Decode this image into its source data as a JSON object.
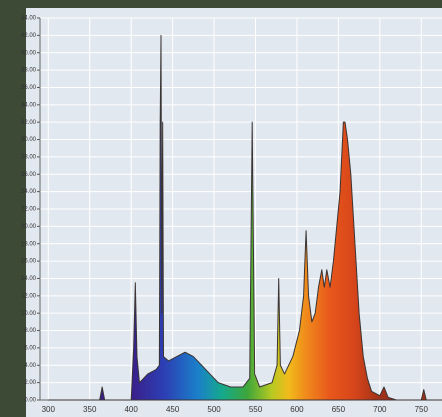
{
  "chart_data": {
    "type": "area",
    "x": [
      300,
      362,
      365,
      368,
      400,
      403,
      405,
      407,
      410,
      420,
      430,
      434,
      435,
      436,
      437,
      438,
      439,
      445,
      455,
      465,
      475,
      485,
      495,
      505,
      520,
      535,
      543,
      546,
      549,
      555,
      570,
      576,
      578,
      580,
      585,
      595,
      603,
      608,
      611,
      614,
      618,
      622,
      626,
      630,
      633,
      636,
      640,
      644,
      648,
      652,
      656,
      658,
      661,
      665,
      670,
      675,
      680,
      685,
      690,
      700,
      705,
      710,
      720,
      750,
      753,
      756,
      775
    ],
    "values": [
      0,
      0,
      1.5,
      0,
      0,
      6,
      13.5,
      5,
      2,
      3,
      3.5,
      4,
      32,
      42,
      10,
      32,
      5,
      4.5,
      5,
      5.5,
      5,
      4,
      3,
      2,
      1.5,
      1.5,
      2.5,
      32,
      3,
      1.5,
      2,
      4,
      14,
      4,
      3,
      5,
      8,
      12,
      19.5,
      12,
      9,
      10,
      13,
      15,
      13,
      15,
      13,
      16,
      20,
      24,
      32,
      32,
      30,
      26,
      18,
      10,
      5,
      2.5,
      1,
      0.5,
      1.5,
      0.3,
      0,
      0,
      1.2,
      0,
      0
    ],
    "line_color": "#3a3434",
    "gradient": [
      {
        "x": 400,
        "color": "#3a1f8a"
      },
      {
        "x": 440,
        "color": "#2c3fb4"
      },
      {
        "x": 480,
        "color": "#1b7fca"
      },
      {
        "x": 510,
        "color": "#15a98c"
      },
      {
        "x": 540,
        "color": "#3da63a"
      },
      {
        "x": 570,
        "color": "#b9c922"
      },
      {
        "x": 590,
        "color": "#f1bb1b"
      },
      {
        "x": 610,
        "color": "#f08c1b"
      },
      {
        "x": 640,
        "color": "#e8571b"
      },
      {
        "x": 670,
        "color": "#d6451a"
      },
      {
        "x": 700,
        "color": "#a03118"
      }
    ],
    "xlim": [
      290,
      775
    ],
    "ylim": [
      0,
      44
    ],
    "xticks": [
      300,
      350,
      400,
      450,
      500,
      550,
      600,
      650,
      700,
      750
    ],
    "yticks": [
      {
        "value": 0,
        "label": "0.00"
      },
      {
        "value": 2,
        "label": "2.00"
      },
      {
        "value": 4,
        "label": "4.00"
      },
      {
        "value": 6,
        "label": "6.00"
      },
      {
        "value": 8,
        "label": "8.00"
      },
      {
        "value": 10,
        "label": "10.00"
      },
      {
        "value": 12,
        "label": "12.00"
      },
      {
        "value": 14,
        "label": "14.00"
      },
      {
        "value": 16,
        "label": "16.00"
      },
      {
        "value": 18,
        "label": "18.00"
      },
      {
        "value": 20,
        "label": "20.00"
      },
      {
        "value": 22,
        "label": "22.00"
      },
      {
        "value": 24,
        "label": "24.00"
      },
      {
        "value": 26,
        "label": "26.00"
      },
      {
        "value": 28,
        "label": "28.00"
      },
      {
        "value": 30,
        "label": "30.00"
      },
      {
        "value": 32,
        "label": "32.00"
      },
      {
        "value": 34,
        "label": "34.00"
      },
      {
        "value": 36,
        "label": "36.00"
      },
      {
        "value": 38,
        "label": "38.00"
      },
      {
        "value": 40,
        "label": "40.00"
      },
      {
        "value": 42,
        "label": "42.00"
      },
      {
        "value": 44,
        "label": "44.00"
      }
    ],
    "grid": true
  }
}
